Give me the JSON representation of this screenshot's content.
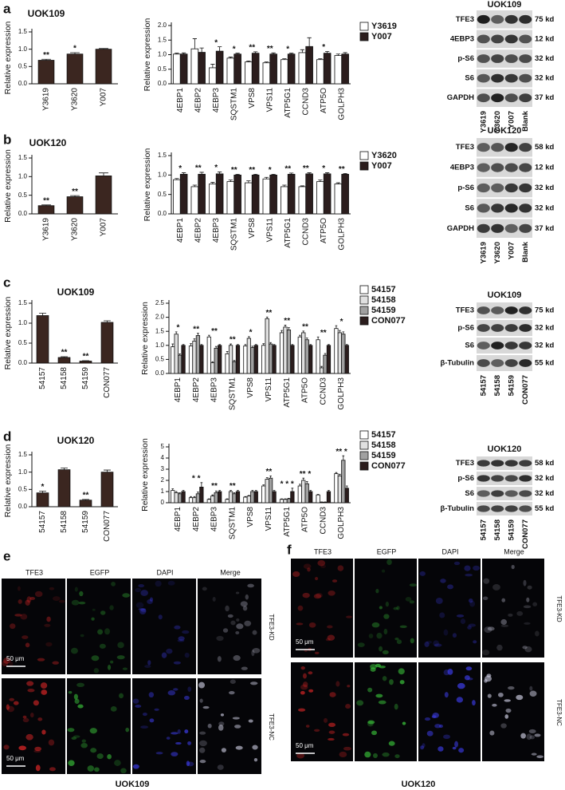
{
  "chart_data": [
    {
      "type": "bar",
      "title": "UOK109",
      "y_label": "Relative expression",
      "categories": [
        "Y3619",
        "Y3620",
        "Y007"
      ],
      "values": [
        0.68,
        0.86,
        1.0
      ],
      "errors": [
        0.03,
        0.04,
        0.02
      ],
      "color": "#3b2620",
      "ylim": [
        0,
        1.5
      ],
      "yticks": [
        {
          "value": 0,
          "label": "0.0"
        },
        {
          "value": 0.5,
          "label": "0.5"
        },
        {
          "value": 1,
          "label": "1.0"
        },
        {
          "value": 1.5,
          "label": "1.5"
        }
      ],
      "annotations": [
        "**",
        "*",
        null
      ]
    },
    {
      "type": "bar",
      "y_label": "Relative expression",
      "categories": [
        "4EBP1",
        "4EBP2",
        "4EBP3",
        "SQSTM1",
        "VPS8",
        "VPS11",
        "ATP5G1",
        "CCND3",
        "ATP5O",
        "GOLPH3"
      ],
      "series": [
        {
          "name": "Y3619",
          "color": "#ffffff",
          "values": [
            1.02,
            1.2,
            0.55,
            0.88,
            0.75,
            0.72,
            0.83,
            1.07,
            0.83,
            0.97
          ],
          "errors": [
            0.03,
            0.35,
            0.12,
            0.04,
            0.03,
            0.03,
            0.03,
            0.1,
            0.03,
            0.05
          ]
        },
        {
          "name": "Y007",
          "color": "#2b1d1d",
          "values": [
            1.02,
            1.08,
            1.12,
            1.02,
            1.05,
            1.02,
            1.02,
            1.28,
            1.05,
            1.02
          ],
          "errors": [
            0.04,
            0.15,
            0.15,
            0.03,
            0.05,
            0.04,
            0.03,
            0.3,
            0.06,
            0.05
          ]
        }
      ],
      "ylim": [
        0,
        2
      ],
      "yticks": [
        {
          "value": 0,
          "label": "0.0"
        },
        {
          "value": 0.5,
          "label": "0.5"
        },
        {
          "value": 1,
          "label": "1.0"
        },
        {
          "value": 1.5,
          "label": "1.5"
        },
        {
          "value": 2,
          "label": "2.0"
        }
      ],
      "annotations": [
        null,
        null,
        "*",
        "*",
        "**",
        "**",
        "*",
        null,
        "*",
        null
      ]
    },
    {
      "type": "bar",
      "title": "UOK120",
      "y_label": "Relative expression",
      "categories": [
        "Y3619",
        "Y3620",
        "Y007"
      ],
      "values": [
        0.22,
        0.46,
        1.02
      ],
      "errors": [
        0.02,
        0.03,
        0.08
      ],
      "color": "#3b2620",
      "ylim": [
        0,
        1.5
      ],
      "yticks": [
        {
          "value": 0,
          "label": "0.0"
        },
        {
          "value": 0.5,
          "label": "0.5"
        },
        {
          "value": 1,
          "label": "1.0"
        },
        {
          "value": 1.5,
          "label": "1.5"
        }
      ],
      "annotations": [
        "**",
        "**",
        null
      ]
    },
    {
      "type": "bar",
      "y_label": "Relative expression",
      "categories": [
        "4EBP1",
        "4EBP2",
        "4EBP3",
        "SQSTM1",
        "VPS8",
        "VPS11",
        "ATP5G1",
        "CCND3",
        "ATP5O",
        "GOLPH3"
      ],
      "series": [
        {
          "name": "Y3620",
          "color": "#ffffff",
          "values": [
            0.88,
            0.7,
            0.77,
            0.83,
            0.8,
            0.9,
            0.7,
            0.7,
            0.83,
            0.77
          ],
          "errors": [
            0.03,
            0.04,
            0.04,
            0.04,
            0.05,
            0.04,
            0.04,
            0.02,
            0.04,
            0.03
          ]
        },
        {
          "name": "Y007",
          "color": "#2b1d1d",
          "values": [
            1.02,
            1.02,
            1.03,
            1.0,
            1.0,
            1.0,
            1.02,
            1.03,
            1.03,
            1.02
          ],
          "errors": [
            0.04,
            0.05,
            0.05,
            0.02,
            0.02,
            0.02,
            0.03,
            0.03,
            0.03,
            0.02
          ]
        }
      ],
      "ylim": [
        0,
        1.5
      ],
      "yticks": [
        {
          "value": 0,
          "label": "0.0"
        },
        {
          "value": 0.5,
          "label": "0.5"
        },
        {
          "value": 1,
          "label": "1.0"
        },
        {
          "value": 1.5,
          "label": "1.5"
        }
      ],
      "annotations": [
        "*",
        "**",
        "*",
        "**",
        "**",
        "*",
        "**",
        "**",
        "*",
        "**"
      ]
    },
    {
      "type": "bar",
      "title": "UOK109",
      "y_label": "Relative expression",
      "categories": [
        "54157",
        "54158",
        "54159",
        "CON077"
      ],
      "values": [
        1.19,
        0.14,
        0.05,
        1.02
      ],
      "errors": [
        0.06,
        0.02,
        0.01,
        0.04
      ],
      "color": "#3b2620",
      "ylim": [
        0,
        1.5
      ],
      "yticks": [
        {
          "value": 0,
          "label": "0.0"
        },
        {
          "value": 0.5,
          "label": "0.5"
        },
        {
          "value": 1,
          "label": "1.0"
        },
        {
          "value": 1.5,
          "label": "1.5"
        }
      ],
      "annotations": [
        null,
        "**",
        "**",
        null
      ]
    },
    {
      "type": "bar",
      "y_label": "Relative expression",
      "categories": [
        "4EBP1",
        "4EBP2",
        "4EBP3",
        "SQSTM1",
        "VPS8",
        "VPS11",
        "ATP5G1",
        "ATP5O",
        "CCND3",
        "GOLPH3"
      ],
      "series": [
        {
          "name": "54157",
          "color": "#ffffff",
          "values": [
            0.95,
            0.98,
            1.3,
            0.7,
            0.98,
            1.0,
            1.45,
            1.3,
            1.2,
            1.6
          ],
          "errors": [
            0.1,
            0.08,
            0.06,
            0.08,
            0.05,
            0.06,
            0.08,
            0.06,
            0.1,
            0.1
          ]
        },
        {
          "name": "54158",
          "color": "#e0e0e0",
          "values": [
            1.4,
            1.15,
            0.38,
            1.0,
            1.25,
            1.95,
            1.65,
            1.45,
            0.2,
            1.45
          ],
          "errors": [
            0.08,
            0.08,
            0.04,
            0.05,
            0.06,
            0.06,
            0.07,
            0.06,
            0.05,
            0.08
          ]
        },
        {
          "name": "54159",
          "color": "#a0a0a0",
          "values": [
            0.65,
            1.35,
            0.9,
            0.42,
            0.92,
            1.05,
            1.55,
            1.2,
            0.65,
            1.4
          ],
          "errors": [
            0.05,
            0.08,
            0.06,
            0.04,
            0.05,
            0.05,
            0.08,
            0.06,
            0.06,
            0.08
          ]
        },
        {
          "name": "CON077",
          "color": "#2b1d1d",
          "values": [
            1.0,
            1.0,
            1.0,
            1.0,
            1.0,
            1.0,
            1.0,
            1.0,
            1.0,
            1.0
          ],
          "errors": [
            0.03,
            0.03,
            0.03,
            0.03,
            0.03,
            0.03,
            0.03,
            0.03,
            0.03,
            0.03
          ]
        }
      ],
      "ylim": [
        0,
        2.5
      ],
      "yticks": [
        {
          "value": 0,
          "label": "0.0"
        },
        {
          "value": 0.5,
          "label": "0.5"
        },
        {
          "value": 1,
          "label": "1.0"
        },
        {
          "value": 1.5,
          "label": "1.5"
        },
        {
          "value": 2,
          "label": "2.0"
        },
        {
          "value": 2.5,
          "label": "2.5"
        }
      ],
      "annotations": [
        "*",
        "**",
        "**",
        "**",
        "*",
        "**",
        "**",
        "**",
        "**",
        "*"
      ]
    },
    {
      "type": "bar",
      "title": "UOK120",
      "y_label": "Relative expression",
      "categories": [
        "54157",
        "54158",
        "54159",
        "CON077"
      ],
      "values": [
        0.4,
        1.07,
        0.19,
        1.0
      ],
      "errors": [
        0.05,
        0.05,
        0.02,
        0.06
      ],
      "color": "#3b2620",
      "ylim": [
        0,
        1.5
      ],
      "yticks": [
        {
          "value": 0,
          "label": "0.0"
        },
        {
          "value": 0.5,
          "label": "0.5"
        },
        {
          "value": 1,
          "label": "1.0"
        },
        {
          "value": 1.5,
          "label": "1.5"
        }
      ],
      "annotations": [
        "*",
        null,
        "**",
        null
      ]
    },
    {
      "type": "bar",
      "y_label": "Relative expression",
      "categories": [
        "4EBP1",
        "4EBP2",
        "4EBP3",
        "SQSTM1",
        "VPS8",
        "VPS11",
        "ATP5G1",
        "ATP5O",
        "CCND3",
        "GOLPH3"
      ],
      "series": [
        {
          "name": "54157",
          "color": "#ffffff",
          "values": [
            1.1,
            0.45,
            0.3,
            0.3,
            0.5,
            1.5,
            0.3,
            1.5,
            0.7,
            2.6
          ],
          "errors": [
            0.15,
            0.1,
            0.05,
            0.05,
            0.05,
            0.1,
            0.05,
            0.15,
            0.05,
            0.1
          ]
        },
        {
          "name": "54158",
          "color": "#e0e0e0",
          "values": [
            0.9,
            0.45,
            0.6,
            1.0,
            0.6,
            2.1,
            0.3,
            2.0,
            0.05,
            2.4
          ],
          "errors": [
            0.1,
            0.1,
            0.1,
            0.1,
            0.05,
            0.15,
            0.05,
            0.2,
            0.02,
            0.15
          ]
        },
        {
          "name": "54159",
          "color": "#a0a0a0",
          "values": [
            0.8,
            0.8,
            0.9,
            0.8,
            1.0,
            2.2,
            0.35,
            1.7,
            0.05,
            3.8
          ],
          "errors": [
            0.1,
            0.15,
            0.15,
            0.1,
            0.1,
            0.2,
            0.05,
            0.2,
            0.02,
            0.4
          ]
        },
        {
          "name": "CON077",
          "color": "#2b1d1d",
          "values": [
            1.0,
            1.4,
            1.0,
            1.0,
            1.0,
            1.0,
            1.0,
            1.0,
            1.0,
            1.3
          ],
          "errors": [
            0.1,
            0.4,
            0.1,
            0.1,
            0.1,
            0.1,
            0.3,
            0.1,
            0.1,
            0.2
          ]
        }
      ],
      "ylim": [
        0,
        5
      ],
      "yticks": [
        0,
        1,
        2,
        3,
        4,
        5
      ],
      "annotations": [
        null,
        "* *",
        "**",
        "**",
        null,
        "**",
        "* * *",
        "** *",
        null,
        "** *"
      ]
    }
  ],
  "panel_labels": [
    "a",
    "b",
    "c",
    "d",
    "e",
    "f"
  ],
  "blots": [
    {
      "title": "UOK109",
      "rows": [
        {
          "protein": "TFE3",
          "size": "75 kd"
        },
        {
          "protein": "4EBP3",
          "size": "12 kd"
        },
        {
          "protein": "p-S6",
          "size": "32 kd"
        },
        {
          "protein": "S6",
          "size": "32 kd"
        },
        {
          "protein": "GAPDH",
          "size": "37 kd"
        }
      ],
      "lanes": [
        "Y3619",
        "Y3620",
        "Y007",
        "Blank"
      ]
    },
    {
      "title": "UOK120",
      "rows": [
        {
          "protein": "TFE3",
          "size": "58 kd"
        },
        {
          "protein": "4EBP3",
          "size": "12 kd"
        },
        {
          "protein": "p-S6",
          "size": "32 kd"
        },
        {
          "protein": "S6",
          "size": "32 kd"
        },
        {
          "protein": "GAPDH",
          "size": "37 kd"
        }
      ],
      "lanes": [
        "Y3619",
        "Y3620",
        "Y007",
        "Blank"
      ]
    },
    {
      "title": "UOK109",
      "rows": [
        {
          "protein": "TFE3",
          "size": "75 kd"
        },
        {
          "protein": "p-S6",
          "size": "32 kd"
        },
        {
          "protein": "S6",
          "size": "32 kd"
        },
        {
          "protein": "β-Tubulin",
          "size": "55 kd"
        }
      ],
      "lanes": [
        "54157",
        "54158",
        "54159",
        "CON077"
      ]
    },
    {
      "title": "UOK120",
      "rows": [
        {
          "protein": "TFE3",
          "size": "58 kd"
        },
        {
          "protein": "p-S6",
          "size": "32 kd"
        },
        {
          "protein": "S6",
          "size": "32 kd"
        },
        {
          "protein": "β-Tubulin",
          "size": "55 kd"
        }
      ],
      "lanes": [
        "54157",
        "54158",
        "54159",
        "CON077"
      ]
    }
  ],
  "microscopy": [
    {
      "channels": [
        "TFE3",
        "EGFP",
        "DAPI",
        "Merge"
      ],
      "conditions": [
        "TFE3-KD",
        "TFE3-NC"
      ],
      "scale_bar": "50 μm",
      "cell_line": "UOK109"
    },
    {
      "channels": [
        "TFE3",
        "EGFP",
        "DAPI",
        "Merge"
      ],
      "conditions": [
        "TFE3-KD",
        "TFE3-NC"
      ],
      "scale_bar": "50 μm",
      "cell_line": "UOK120"
    }
  ]
}
